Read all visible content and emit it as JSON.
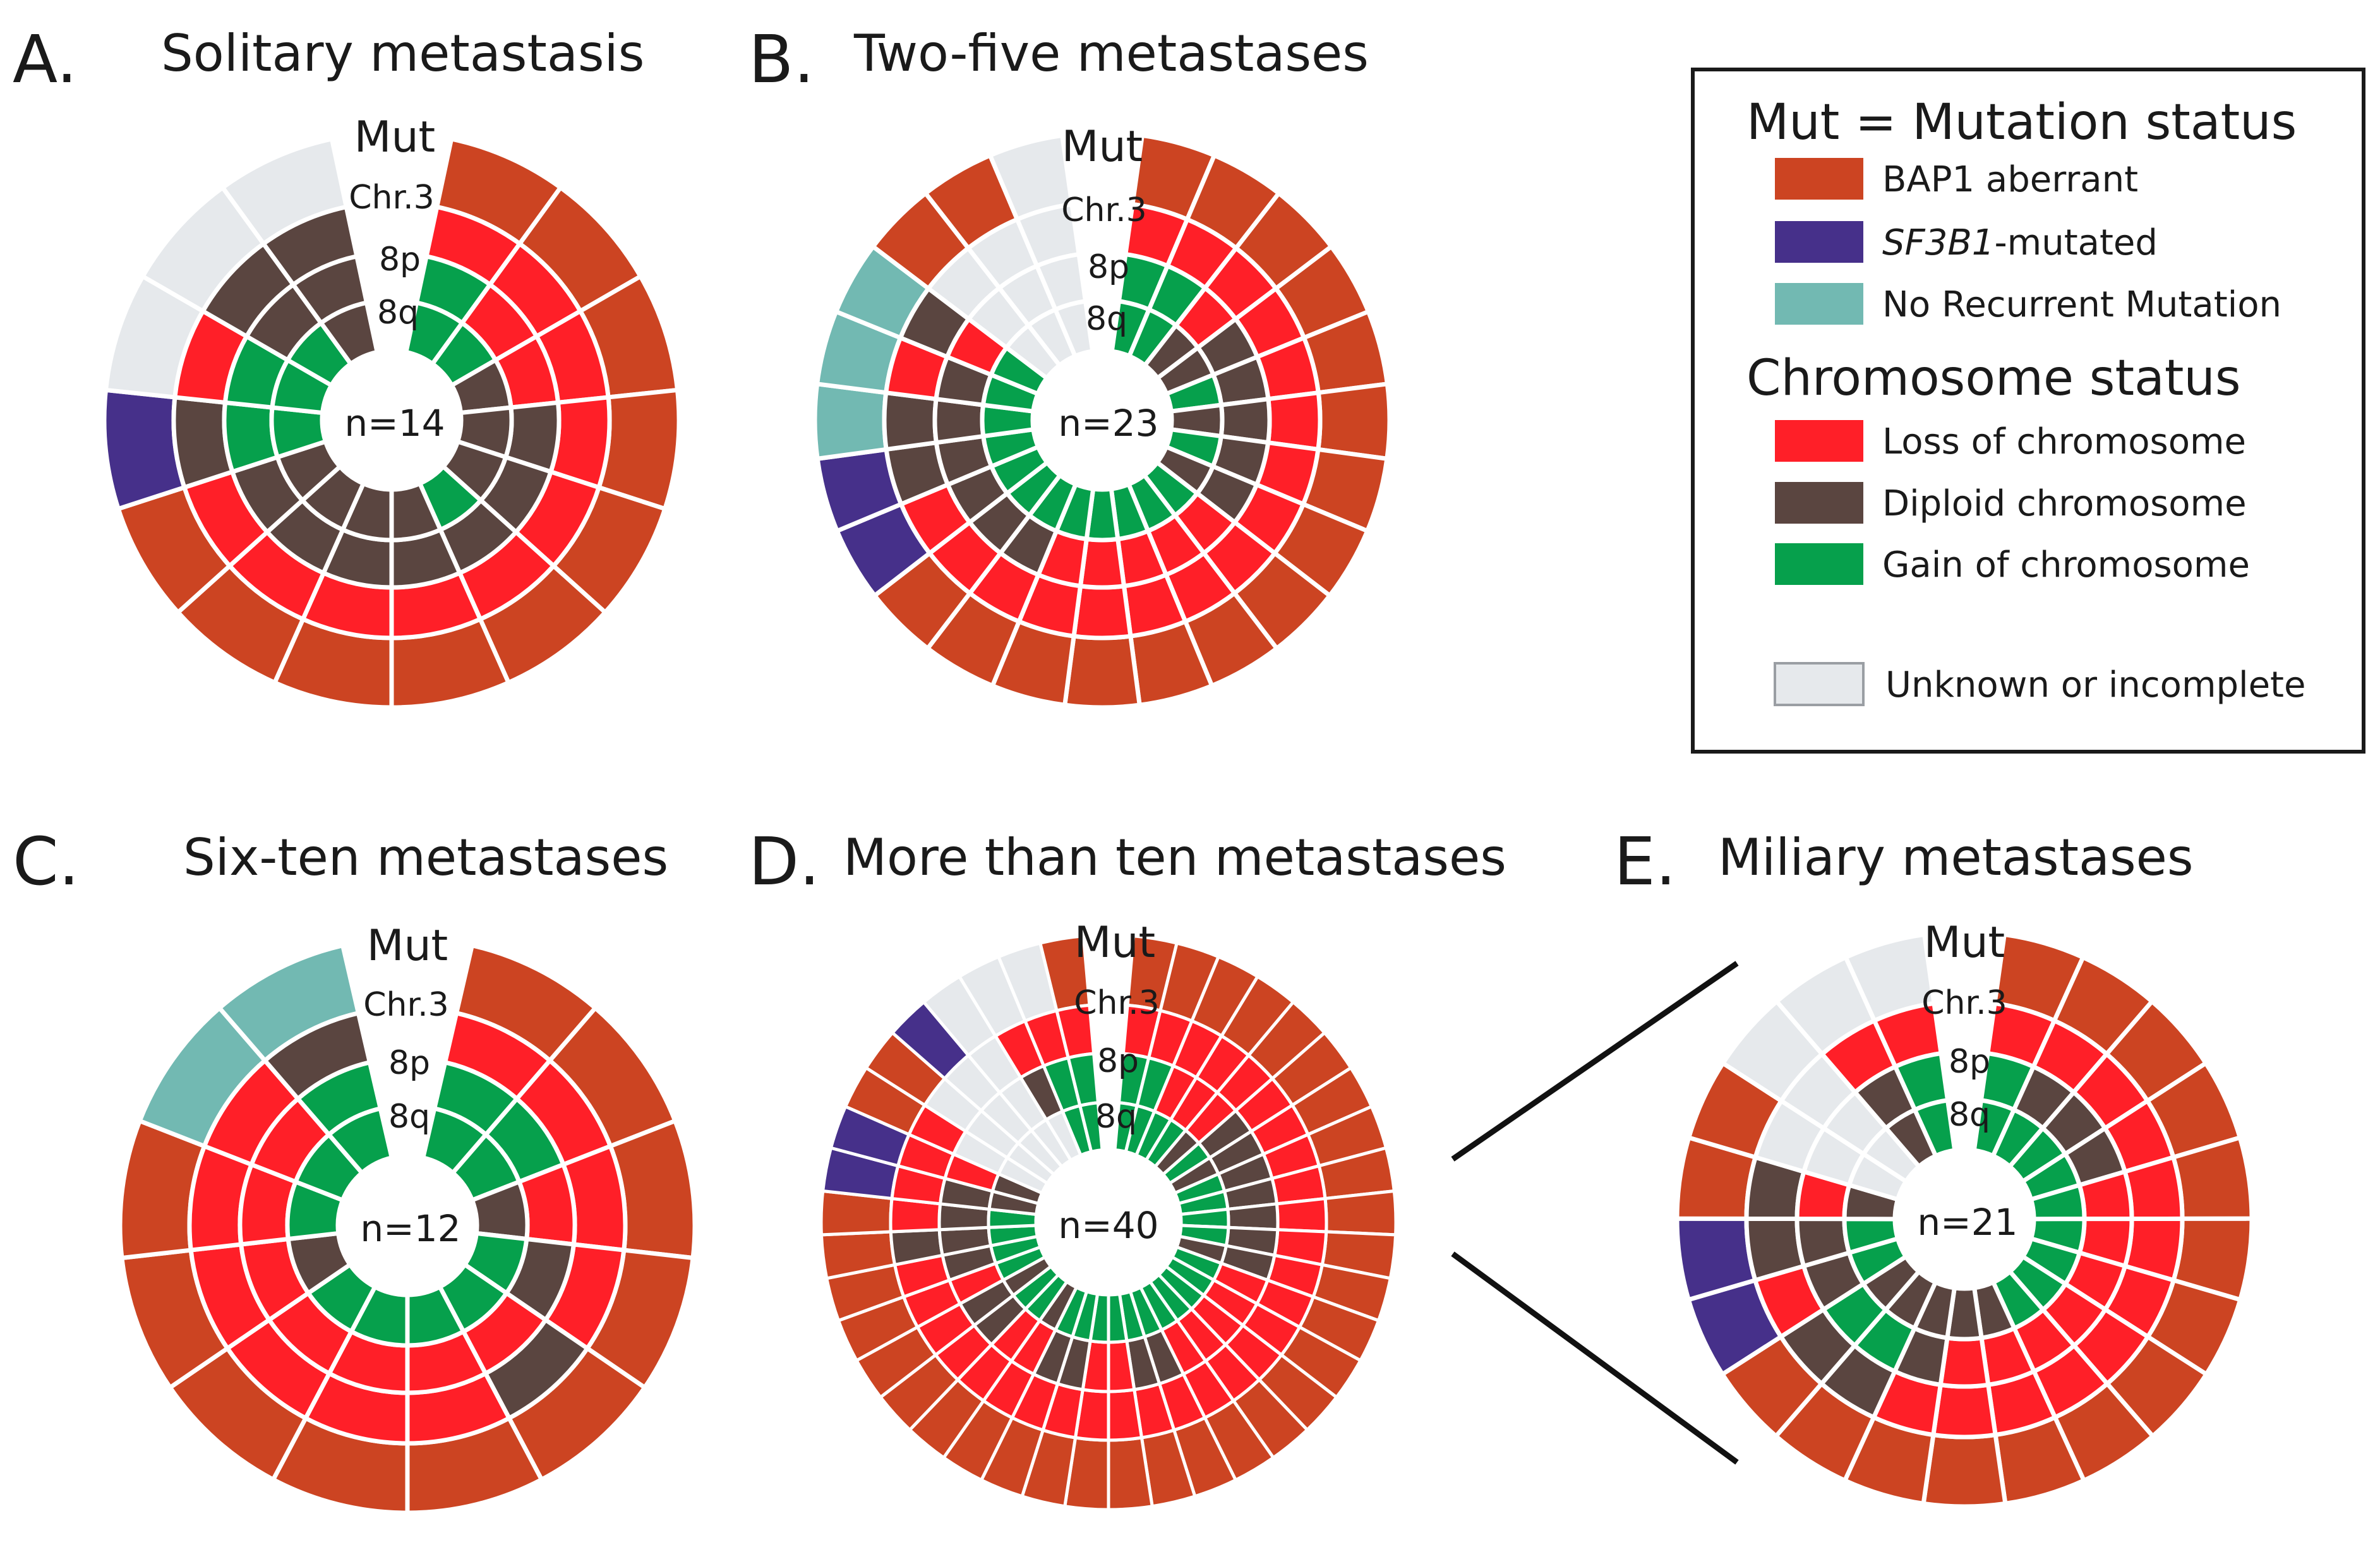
{
  "colors": {
    "bap1": "#cc4422",
    "sf3b1": "#46308a",
    "norec": "#72b9b2",
    "loss": "#ff1f28",
    "diploid": "#5a4540",
    "gain": "#06a04c",
    "unknown": "#e6e9ec",
    "separator": "#ffffff"
  },
  "ring_labels": [
    "Mut",
    "Chr.3",
    "8p",
    "8q"
  ],
  "legend": {
    "mutation_heading": "Mut = Mutation status",
    "mutation_items": [
      {
        "key": "bap1",
        "label": "BAP1 aberrant"
      },
      {
        "key": "sf3b1",
        "label_italic": "SF3B1",
        "label_rest": "-mutated"
      },
      {
        "key": "norec",
        "label": "No Recurrent Mutation"
      }
    ],
    "chromosome_heading": "Chromosome status",
    "chromosome_items": [
      {
        "key": "loss",
        "label": "Loss of chromosome"
      },
      {
        "key": "diploid",
        "label": "Diploid chromosome"
      },
      {
        "key": "gain",
        "label": "Gain of chromosome"
      }
    ],
    "unknown_item": {
      "key": "unknown",
      "label": "Unknown or incomplete"
    }
  },
  "chart_data": [
    {
      "type": "radial-segment",
      "letter": "A.",
      "title": "Solitary metastasis",
      "n_label": "n=14",
      "rings": [
        "Mut",
        "Chr.3",
        "8p",
        "8q"
      ],
      "samples": [
        [
          "bap1",
          "loss",
          "gain",
          "gain"
        ],
        [
          "bap1",
          "loss",
          "loss",
          "gain"
        ],
        [
          "bap1",
          "loss",
          "loss",
          "diploid"
        ],
        [
          "bap1",
          "loss",
          "diploid",
          "diploid"
        ],
        [
          "bap1",
          "loss",
          "diploid",
          "diploid"
        ],
        [
          "bap1",
          "loss",
          "diploid",
          "gain"
        ],
        [
          "bap1",
          "loss",
          "diploid",
          "diploid"
        ],
        [
          "bap1",
          "loss",
          "diploid",
          "diploid"
        ],
        [
          "bap1",
          "loss",
          "diploid",
          "diploid"
        ],
        [
          "bap1",
          "loss",
          "diploid",
          "diploid"
        ],
        [
          "sf3b1",
          "diploid",
          "gain",
          "gain"
        ],
        [
          "unknown",
          "loss",
          "gain",
          "gain"
        ],
        [
          "unknown",
          "diploid",
          "diploid",
          "gain"
        ],
        [
          "unknown",
          "diploid",
          "diploid",
          "diploid"
        ]
      ]
    },
    {
      "type": "radial-segment",
      "letter": "B.",
      "title": "Two-five metastases",
      "n_label": "n=23",
      "rings": [
        "Mut",
        "Chr.3",
        "8p",
        "8q"
      ],
      "samples": [
        [
          "bap1",
          "loss",
          "gain",
          "gain"
        ],
        [
          "bap1",
          "loss",
          "gain",
          "gain"
        ],
        [
          "bap1",
          "loss",
          "loss",
          "diploid"
        ],
        [
          "bap1",
          "loss",
          "diploid",
          "diploid"
        ],
        [
          "bap1",
          "loss",
          "diploid",
          "gain"
        ],
        [
          "bap1",
          "loss",
          "diploid",
          "diploid"
        ],
        [
          "bap1",
          "loss",
          "diploid",
          "gain"
        ],
        [
          "bap1",
          "loss",
          "diploid",
          "diploid"
        ],
        [
          "bap1",
          "loss",
          "loss",
          "gain"
        ],
        [
          "bap1",
          "loss",
          "loss",
          "gain"
        ],
        [
          "bap1",
          "loss",
          "loss",
          "gain"
        ],
        [
          "bap1",
          "loss",
          "loss",
          "gain"
        ],
        [
          "bap1",
          "loss",
          "loss",
          "gain"
        ],
        [
          "bap1",
          "loss",
          "diploid",
          "gain"
        ],
        [
          "bap1",
          "loss",
          "diploid",
          "gain"
        ],
        [
          "sf3b1",
          "loss",
          "diploid",
          "gain"
        ],
        [
          "sf3b1",
          "diploid",
          "diploid",
          "gain"
        ],
        [
          "norec",
          "diploid",
          "diploid",
          "gain"
        ],
        [
          "norec",
          "loss",
          "diploid",
          "gain"
        ],
        [
          "norec",
          "diploid",
          "loss",
          "gain"
        ],
        [
          "bap1",
          "unknown",
          "unknown",
          "unknown"
        ],
        [
          "bap1",
          "unknown",
          "unknown",
          "unknown"
        ],
        [
          "unknown",
          "unknown",
          "unknown",
          "unknown"
        ]
      ]
    },
    {
      "type": "radial-segment",
      "letter": "C.",
      "title": "Six-ten metastases",
      "n_label": "n=12",
      "rings": [
        "Mut",
        "Chr.3",
        "8p",
        "8q"
      ],
      "samples": [
        [
          "bap1",
          "loss",
          "gain",
          "gain"
        ],
        [
          "bap1",
          "loss",
          "gain",
          "gain"
        ],
        [
          "bap1",
          "loss",
          "loss",
          "diploid"
        ],
        [
          "bap1",
          "loss",
          "diploid",
          "gain"
        ],
        [
          "bap1",
          "diploid",
          "loss",
          "gain"
        ],
        [
          "bap1",
          "loss",
          "loss",
          "gain"
        ],
        [
          "bap1",
          "loss",
          "loss",
          "gain"
        ],
        [
          "bap1",
          "loss",
          "loss",
          "gain"
        ],
        [
          "bap1",
          "loss",
          "loss",
          "diploid"
        ],
        [
          "bap1",
          "loss",
          "loss",
          "gain"
        ],
        [
          "norec",
          "loss",
          "loss",
          "gain"
        ],
        [
          "norec",
          "diploid",
          "gain",
          "gain"
        ]
      ]
    },
    {
      "type": "radial-segment",
      "letter": "D.",
      "title": "More than ten metastases",
      "n_label": "n=40",
      "rings": [
        "Mut",
        "Chr.3",
        "8p",
        "8q"
      ],
      "samples": [
        [
          "bap1",
          "loss",
          "gain",
          "gain"
        ],
        [
          "bap1",
          "loss",
          "gain",
          "gain"
        ],
        [
          "bap1",
          "loss",
          "loss",
          "gain"
        ],
        [
          "bap1",
          "loss",
          "loss",
          "gain"
        ],
        [
          "bap1",
          "loss",
          "loss",
          "diploid"
        ],
        [
          "bap1",
          "loss",
          "diploid",
          "gain"
        ],
        [
          "bap1",
          "loss",
          "diploid",
          "diploid"
        ],
        [
          "bap1",
          "loss",
          "diploid",
          "gain"
        ],
        [
          "bap1",
          "loss",
          "diploid",
          "gain"
        ],
        [
          "bap1",
          "loss",
          "diploid",
          "gain"
        ],
        [
          "bap1",
          "loss",
          "diploid",
          "gain"
        ],
        [
          "bap1",
          "loss",
          "diploid",
          "diploid"
        ],
        [
          "bap1",
          "loss",
          "loss",
          "gain"
        ],
        [
          "bap1",
          "loss",
          "loss",
          "gain"
        ],
        [
          "bap1",
          "loss",
          "loss",
          "gain"
        ],
        [
          "bap1",
          "loss",
          "loss",
          "gain"
        ],
        [
          "bap1",
          "loss",
          "loss",
          "gain"
        ],
        [
          "bap1",
          "loss",
          "diploid",
          "gain"
        ],
        [
          "bap1",
          "loss",
          "diploid",
          "gain"
        ],
        [
          "bap1",
          "loss",
          "loss",
          "gain"
        ],
        [
          "bap1",
          "loss",
          "loss",
          "gain"
        ],
        [
          "bap1",
          "loss",
          "diploid",
          "gain"
        ],
        [
          "bap1",
          "loss",
          "diploid",
          "gain"
        ],
        [
          "bap1",
          "loss",
          "loss",
          "diploid"
        ],
        [
          "bap1",
          "loss",
          "loss",
          "gain"
        ],
        [
          "bap1",
          "loss",
          "diploid",
          "gain"
        ],
        [
          "bap1",
          "loss",
          "diploid",
          "diploid"
        ],
        [
          "bap1",
          "loss",
          "loss",
          "gain"
        ],
        [
          "bap1",
          "loss",
          "diploid",
          "gain"
        ],
        [
          "bap1",
          "diploid",
          "diploid",
          "gain"
        ],
        [
          "bap1",
          "loss",
          "diploid",
          "gain"
        ],
        [
          "sf3b1",
          "loss",
          "diploid",
          "diploid"
        ],
        [
          "sf3b1",
          "loss",
          "loss",
          "diploid"
        ],
        [
          "bap1",
          "loss",
          "unknown",
          "unknown"
        ],
        [
          "bap1",
          "unknown",
          "unknown",
          "unknown"
        ],
        [
          "sf3b1",
          "unknown",
          "unknown",
          "unknown"
        ],
        [
          "unknown",
          "unknown",
          "unknown",
          "unknown"
        ],
        [
          "unknown",
          "loss",
          "diploid",
          "unknown"
        ],
        [
          "unknown",
          "loss",
          "gain",
          "gain"
        ],
        [
          "bap1",
          "loss",
          "gain",
          "gain"
        ]
      ]
    },
    {
      "type": "radial-segment",
      "letter": "E.",
      "title": "Miliary metastases",
      "n_label": "n=21",
      "rings": [
        "Mut",
        "Chr.3",
        "8p",
        "8q"
      ],
      "samples": [
        [
          "bap1",
          "loss",
          "gain",
          "gain"
        ],
        [
          "bap1",
          "loss",
          "diploid",
          "gain"
        ],
        [
          "bap1",
          "loss",
          "diploid",
          "gain"
        ],
        [
          "bap1",
          "loss",
          "diploid",
          "gain"
        ],
        [
          "bap1",
          "loss",
          "loss",
          "gain"
        ],
        [
          "bap1",
          "loss",
          "loss",
          "gain"
        ],
        [
          "bap1",
          "loss",
          "loss",
          "gain"
        ],
        [
          "bap1",
          "loss",
          "loss",
          "gain"
        ],
        [
          "bap1",
          "loss",
          "loss",
          "gain"
        ],
        [
          "bap1",
          "loss",
          "loss",
          "diploid"
        ],
        [
          "bap1",
          "loss",
          "loss",
          "diploid"
        ],
        [
          "bap1",
          "loss",
          "diploid",
          "diploid"
        ],
        [
          "bap1",
          "diploid",
          "gain",
          "diploid"
        ],
        [
          "bap1",
          "diploid",
          "gain",
          "diploid"
        ],
        [
          "sf3b1",
          "loss",
          "diploid",
          "gain"
        ],
        [
          "sf3b1",
          "diploid",
          "diploid",
          "gain"
        ],
        [
          "bap1",
          "diploid",
          "loss",
          "diploid"
        ],
        [
          "bap1",
          "unknown",
          "unknown",
          "unknown"
        ],
        [
          "unknown",
          "unknown",
          "unknown",
          "unknown"
        ],
        [
          "unknown",
          "loss",
          "diploid",
          "diploid"
        ],
        [
          "unknown",
          "loss",
          "gain",
          "gain"
        ]
      ]
    }
  ]
}
